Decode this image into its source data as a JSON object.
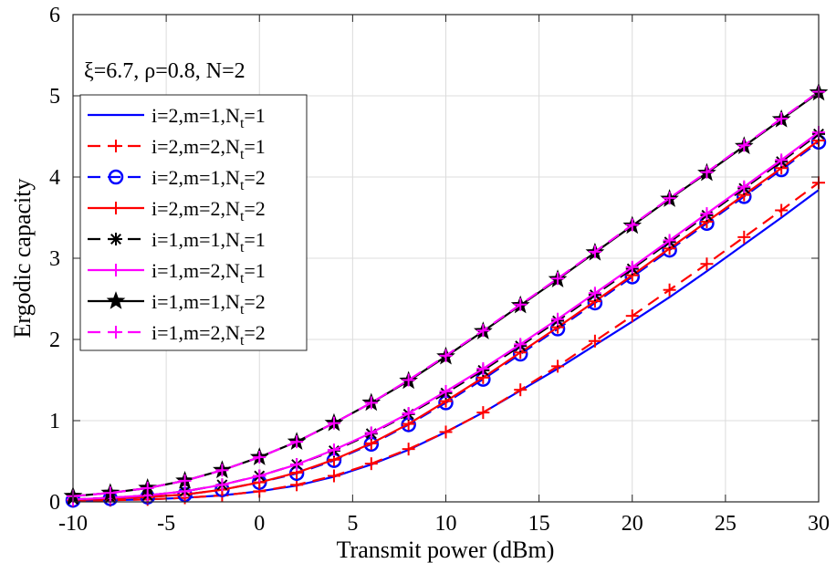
{
  "chart_data": {
    "type": "line",
    "title": "",
    "annotation": "ξ=6.7, ρ=0.8, N=2",
    "xlabel": "Transmit power (dBm)",
    "ylabel": "Ergodic capacity",
    "xlim": [
      -10,
      30
    ],
    "ylim": [
      0,
      6
    ],
    "xticks": [
      -10,
      -5,
      0,
      5,
      10,
      15,
      20,
      25,
      30
    ],
    "yticks": [
      0,
      1,
      2,
      3,
      4,
      5,
      6
    ],
    "grid": true,
    "legend_position": "top-left",
    "x": [
      -10,
      -8,
      -6,
      -4,
      -2,
      0,
      2,
      4,
      6,
      8,
      10,
      12,
      14,
      16,
      18,
      20,
      22,
      24,
      26,
      28,
      30
    ],
    "series": [
      {
        "name": "i=2,m=1,N_t=1",
        "legend": {
          "base": "i=2,m=1,N",
          "sub": "t",
          "rest": "=1"
        },
        "color": "#0000ff",
        "dash": "solid",
        "marker": "none",
        "values": [
          0.01,
          0.02,
          0.03,
          0.05,
          0.08,
          0.13,
          0.2,
          0.31,
          0.46,
          0.64,
          0.86,
          1.1,
          1.37,
          1.64,
          1.93,
          2.22,
          2.52,
          2.84,
          3.17,
          3.5,
          3.84
        ]
      },
      {
        "name": "i=2,m=2,N_t=1",
        "legend": {
          "base": "i=2,m=2,N",
          "sub": "t",
          "rest": "=1"
        },
        "color": "#ff0000",
        "dash": "dashed",
        "marker": "plus",
        "values": [
          0.01,
          0.02,
          0.03,
          0.05,
          0.08,
          0.13,
          0.21,
          0.32,
          0.47,
          0.65,
          0.86,
          1.1,
          1.38,
          1.67,
          1.98,
          2.29,
          2.61,
          2.93,
          3.26,
          3.59,
          3.93
        ]
      },
      {
        "name": "i=2,m=1,N_t=2",
        "legend": {
          "base": "i=2,m=1,N",
          "sub": "t",
          "rest": "=2"
        },
        "color": "#0000ff",
        "dash": "dashed",
        "marker": "circle",
        "values": [
          0.02,
          0.04,
          0.06,
          0.09,
          0.15,
          0.24,
          0.35,
          0.51,
          0.71,
          0.95,
          1.22,
          1.51,
          1.82,
          2.13,
          2.45,
          2.77,
          3.1,
          3.43,
          3.76,
          4.09,
          4.43
        ]
      },
      {
        "name": "i=2,m=2,N_t=2",
        "legend": {
          "base": "i=2,m=2,N",
          "sub": "t",
          "rest": "=2"
        },
        "color": "#ff0000",
        "dash": "solid",
        "marker": "plus",
        "values": [
          0.02,
          0.04,
          0.06,
          0.09,
          0.15,
          0.24,
          0.36,
          0.52,
          0.72,
          0.96,
          1.24,
          1.53,
          1.84,
          2.15,
          2.47,
          2.79,
          3.12,
          3.45,
          3.78,
          4.11,
          4.45
        ]
      },
      {
        "name": "i=1,m=1,N_t=1",
        "legend": {
          "base": "i=1,m=1,N",
          "sub": "t",
          "rest": "=1"
        },
        "color": "#000000",
        "dash": "dashed",
        "marker": "asterisk",
        "values": [
          0.03,
          0.05,
          0.08,
          0.13,
          0.21,
          0.32,
          0.46,
          0.63,
          0.84,
          1.08,
          1.34,
          1.62,
          1.92,
          2.23,
          2.55,
          2.87,
          3.2,
          3.53,
          3.86,
          4.19,
          4.53
        ]
      },
      {
        "name": "i=1,m=2,N_t=1",
        "legend": {
          "base": "i=1,m=2,N",
          "sub": "t",
          "rest": "=1"
        },
        "color": "#ff00ff",
        "dash": "solid",
        "marker": "plus",
        "values": [
          0.03,
          0.05,
          0.08,
          0.13,
          0.21,
          0.32,
          0.46,
          0.64,
          0.85,
          1.09,
          1.36,
          1.64,
          1.94,
          2.25,
          2.57,
          2.89,
          3.22,
          3.55,
          3.88,
          4.21,
          4.55
        ]
      },
      {
        "name": "i=1,m=1,N_t=2",
        "legend": {
          "base": "i=1,m=1,N",
          "sub": "t",
          "rest": "=2"
        },
        "color": "#000000",
        "dash": "solid",
        "marker": "star",
        "values": [
          0.07,
          0.11,
          0.17,
          0.26,
          0.39,
          0.55,
          0.74,
          0.97,
          1.22,
          1.49,
          1.79,
          2.1,
          2.42,
          2.74,
          3.07,
          3.4,
          3.73,
          4.05,
          4.38,
          4.71,
          5.04
        ]
      },
      {
        "name": "i=1,m=2,N_t=2",
        "legend": {
          "base": "i=1,m=2,N",
          "sub": "t",
          "rest": "=2"
        },
        "color": "#ff00ff",
        "dash": "dashed",
        "marker": "plus",
        "values": [
          0.07,
          0.11,
          0.17,
          0.26,
          0.39,
          0.55,
          0.74,
          0.97,
          1.22,
          1.5,
          1.8,
          2.11,
          2.43,
          2.75,
          3.08,
          3.41,
          3.74,
          4.06,
          4.39,
          4.72,
          5.05
        ]
      }
    ]
  }
}
